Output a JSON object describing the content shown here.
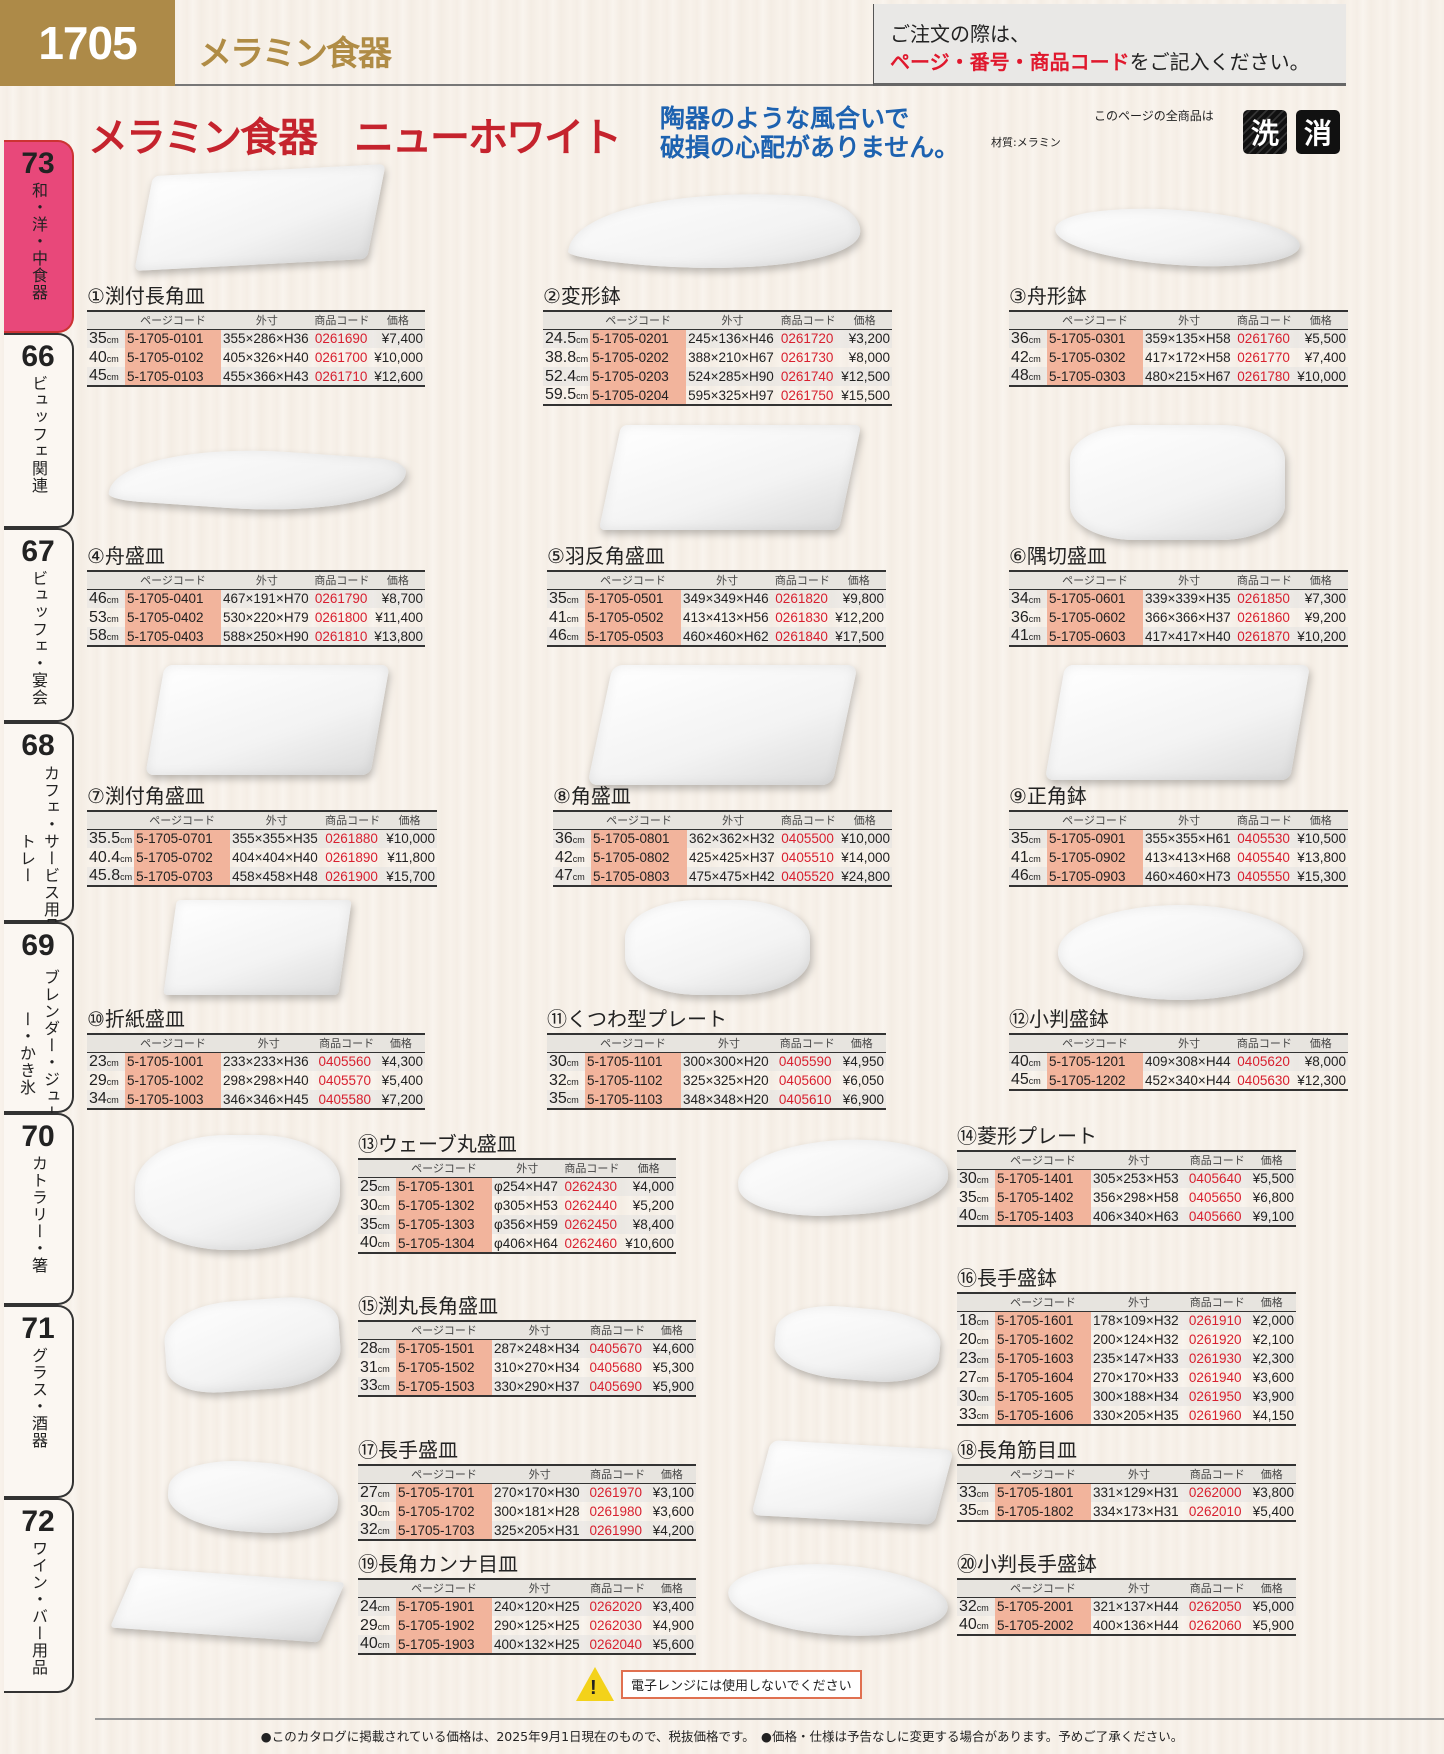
{
  "header": {
    "page_number": "1705",
    "category": "メラミン食器",
    "order_note_line1": "ご注文の際は、",
    "order_note_red": "ページ・番号・商品コード",
    "order_note_rest": "をご記入ください。"
  },
  "title": {
    "main": "メラミン食器　ニューホワイト",
    "catch_line1": "陶器のような風合いで",
    "catch_line2": "破損の心配がありません。",
    "material": "材質:メラミン",
    "all_items_note": "このページの全商品は",
    "badge_wash": "洗",
    "badge_disinfect": "消"
  },
  "side_tabs": [
    {
      "num": "73",
      "label": "和・洋・中食器",
      "active": true
    },
    {
      "num": "66",
      "label": "ビュッフェ関連"
    },
    {
      "num": "67",
      "label": "ビュッフェ・宴会"
    },
    {
      "num": "68",
      "label": "カフェ・サービス用品・トレー"
    },
    {
      "num": "69",
      "label": "ブレンダー・ジューサー・かき氷"
    },
    {
      "num": "70",
      "label": "カトラリー・箸"
    },
    {
      "num": "71",
      "label": "グラス・酒器"
    },
    {
      "num": "72",
      "label": "ワイン・バー用品"
    }
  ],
  "table_headers": [
    "",
    "ページコード",
    "外寸",
    "商品コード",
    "価格"
  ],
  "size_unit": "cm",
  "products": [
    {
      "title": "①渕付長角皿",
      "rows": [
        [
          "35",
          "5-1705-0101",
          "355×286×H36",
          "0261690",
          "¥7,400"
        ],
        [
          "40",
          "5-1705-0102",
          "405×326×H40",
          "0261700",
          "¥10,000"
        ],
        [
          "45",
          "5-1705-0103",
          "455×366×H43",
          "0261710",
          "¥12,600"
        ]
      ]
    },
    {
      "title": "②変形鉢",
      "rows": [
        [
          "24.5",
          "5-1705-0201",
          "245×136×H46",
          "0261720",
          "¥3,200"
        ],
        [
          "38.8",
          "5-1705-0202",
          "388×210×H67",
          "0261730",
          "¥8,000"
        ],
        [
          "52.4",
          "5-1705-0203",
          "524×285×H90",
          "0261740",
          "¥12,500"
        ],
        [
          "59.5",
          "5-1705-0204",
          "595×325×H97",
          "0261750",
          "¥15,500"
        ]
      ]
    },
    {
      "title": "③舟形鉢",
      "rows": [
        [
          "36",
          "5-1705-0301",
          "359×135×H58",
          "0261760",
          "¥5,500"
        ],
        [
          "42",
          "5-1705-0302",
          "417×172×H58",
          "0261770",
          "¥7,400"
        ],
        [
          "48",
          "5-1705-0303",
          "480×215×H67",
          "0261780",
          "¥10,000"
        ]
      ]
    },
    {
      "title": "④舟盛皿",
      "rows": [
        [
          "46",
          "5-1705-0401",
          "467×191×H70",
          "0261790",
          "¥8,700"
        ],
        [
          "53",
          "5-1705-0402",
          "530×220×H79",
          "0261800",
          "¥11,400"
        ],
        [
          "58",
          "5-1705-0403",
          "588×250×H90",
          "0261810",
          "¥13,800"
        ]
      ]
    },
    {
      "title": "⑤羽反角盛皿",
      "rows": [
        [
          "35",
          "5-1705-0501",
          "349×349×H46",
          "0261820",
          "¥9,800"
        ],
        [
          "41",
          "5-1705-0502",
          "413×413×H56",
          "0261830",
          "¥12,200"
        ],
        [
          "46",
          "5-1705-0503",
          "460×460×H62",
          "0261840",
          "¥17,500"
        ]
      ]
    },
    {
      "title": "⑥隅切盛皿",
      "rows": [
        [
          "34",
          "5-1705-0601",
          "339×339×H35",
          "0261850",
          "¥7,300"
        ],
        [
          "36",
          "5-1705-0602",
          "366×366×H37",
          "0261860",
          "¥9,200"
        ],
        [
          "41",
          "5-1705-0603",
          "417×417×H40",
          "0261870",
          "¥10,200"
        ]
      ]
    },
    {
      "title": "⑦渕付角盛皿",
      "rows": [
        [
          "35.5",
          "5-1705-0701",
          "355×355×H35",
          "0261880",
          "¥10,000"
        ],
        [
          "40.4",
          "5-1705-0702",
          "404×404×H40",
          "0261890",
          "¥11,800"
        ],
        [
          "45.8",
          "5-1705-0703",
          "458×458×H48",
          "0261900",
          "¥15,700"
        ]
      ]
    },
    {
      "title": "⑧角盛皿",
      "rows": [
        [
          "36",
          "5-1705-0801",
          "362×362×H32",
          "0405500",
          "¥10,000"
        ],
        [
          "42",
          "5-1705-0802",
          "425×425×H37",
          "0405510",
          "¥14,000"
        ],
        [
          "47",
          "5-1705-0803",
          "475×475×H42",
          "0405520",
          "¥24,800"
        ]
      ]
    },
    {
      "title": "⑨正角鉢",
      "rows": [
        [
          "35",
          "5-1705-0901",
          "355×355×H61",
          "0405530",
          "¥10,500"
        ],
        [
          "41",
          "5-1705-0902",
          "413×413×H68",
          "0405540",
          "¥13,800"
        ],
        [
          "46",
          "5-1705-0903",
          "460×460×H73",
          "0405550",
          "¥15,300"
        ]
      ]
    },
    {
      "title": "⑩折紙盛皿",
      "rows": [
        [
          "23",
          "5-1705-1001",
          "233×233×H36",
          "0405560",
          "¥4,300"
        ],
        [
          "29",
          "5-1705-1002",
          "298×298×H40",
          "0405570",
          "¥5,400"
        ],
        [
          "34",
          "5-1705-1003",
          "346×346×H45",
          "0405580",
          "¥7,200"
        ]
      ]
    },
    {
      "title": "⑪くつわ型プレート",
      "rows": [
        [
          "30",
          "5-1705-1101",
          "300×300×H20",
          "0405590",
          "¥4,950"
        ],
        [
          "32",
          "5-1705-1102",
          "325×325×H20",
          "0405600",
          "¥6,050"
        ],
        [
          "35",
          "5-1705-1103",
          "348×348×H20",
          "0405610",
          "¥6,900"
        ]
      ]
    },
    {
      "title": "⑫小判盛鉢",
      "rows": [
        [
          "40",
          "5-1705-1201",
          "409×308×H44",
          "0405620",
          "¥8,000"
        ],
        [
          "45",
          "5-1705-1202",
          "452×340×H44",
          "0405630",
          "¥12,300"
        ]
      ]
    },
    {
      "title": "⑬ウェーブ丸盛皿",
      "rows": [
        [
          "25",
          "5-1705-1301",
          "φ254×H47",
          "0262430",
          "¥4,000"
        ],
        [
          "30",
          "5-1705-1302",
          "φ305×H53",
          "0262440",
          "¥5,200"
        ],
        [
          "35",
          "5-1705-1303",
          "φ356×H59",
          "0262450",
          "¥8,400"
        ],
        [
          "40",
          "5-1705-1304",
          "φ406×H64",
          "0262460",
          "¥10,600"
        ]
      ]
    },
    {
      "title": "⑭菱形プレート",
      "rows": [
        [
          "30",
          "5-1705-1401",
          "305×253×H53",
          "0405640",
          "¥5,500"
        ],
        [
          "35",
          "5-1705-1402",
          "356×298×H58",
          "0405650",
          "¥6,800"
        ],
        [
          "40",
          "5-1705-1403",
          "406×340×H63",
          "0405660",
          "¥9,100"
        ]
      ]
    },
    {
      "title": "⑮渕丸長角盛皿",
      "rows": [
        [
          "28",
          "5-1705-1501",
          "287×248×H34",
          "0405670",
          "¥4,600"
        ],
        [
          "31",
          "5-1705-1502",
          "310×270×H34",
          "0405680",
          "¥5,300"
        ],
        [
          "33",
          "5-1705-1503",
          "330×290×H37",
          "0405690",
          "¥5,900"
        ]
      ]
    },
    {
      "title": "⑯長手盛鉢",
      "rows": [
        [
          "18",
          "5-1705-1601",
          "178×109×H32",
          "0261910",
          "¥2,000"
        ],
        [
          "20",
          "5-1705-1602",
          "200×124×H32",
          "0261920",
          "¥2,100"
        ],
        [
          "23",
          "5-1705-1603",
          "235×147×H33",
          "0261930",
          "¥2,300"
        ],
        [
          "27",
          "5-1705-1604",
          "270×170×H33",
          "0261940",
          "¥3,600"
        ],
        [
          "30",
          "5-1705-1605",
          "300×188×H34",
          "0261950",
          "¥3,900"
        ],
        [
          "33",
          "5-1705-1606",
          "330×205×H35",
          "0261960",
          "¥4,150"
        ]
      ]
    },
    {
      "title": "⑰長手盛皿",
      "rows": [
        [
          "27",
          "5-1705-1701",
          "270×170×H30",
          "0261970",
          "¥3,100"
        ],
        [
          "30",
          "5-1705-1702",
          "300×181×H28",
          "0261980",
          "¥3,600"
        ],
        [
          "32",
          "5-1705-1703",
          "325×205×H31",
          "0261990",
          "¥4,200"
        ]
      ]
    },
    {
      "title": "⑱長角筋目皿",
      "rows": [
        [
          "33",
          "5-1705-1801",
          "331×129×H31",
          "0262000",
          "¥3,800"
        ],
        [
          "35",
          "5-1705-1802",
          "334×173×H31",
          "0262010",
          "¥5,400"
        ]
      ]
    },
    {
      "title": "⑲長角カンナ目皿",
      "rows": [
        [
          "24",
          "5-1705-1901",
          "240×120×H25",
          "0262020",
          "¥3,400"
        ],
        [
          "29",
          "5-1705-1902",
          "290×125×H25",
          "0262030",
          "¥4,900"
        ],
        [
          "40",
          "5-1705-1903",
          "400×132×H25",
          "0262040",
          "¥5,600"
        ]
      ]
    },
    {
      "title": "⑳小判長手盛鉢",
      "rows": [
        [
          "32",
          "5-1705-2001",
          "321×137×H44",
          "0262050",
          "¥5,000"
        ],
        [
          "40",
          "5-1705-2002",
          "400×136×H44",
          "0262060",
          "¥5,900"
        ]
      ]
    }
  ],
  "warning": {
    "icon": "warning-triangle-icon",
    "text": "電子レンジには使用しないでください"
  },
  "footer": {
    "text": "●このカタログに掲載されている価格は、2025年9月1日現在のもので、税抜価格です。　●価格・仕様は予告なしに変更する場合があります。予めご了承ください。"
  },
  "colors": {
    "page_number_bg": "#ad8a48",
    "title_red": "#c5232d",
    "catch_blue": "#1d62b0",
    "active_tab": "#e8487a",
    "page_code_bg": "#f2b49c",
    "item_code_red": "#d8202f"
  }
}
